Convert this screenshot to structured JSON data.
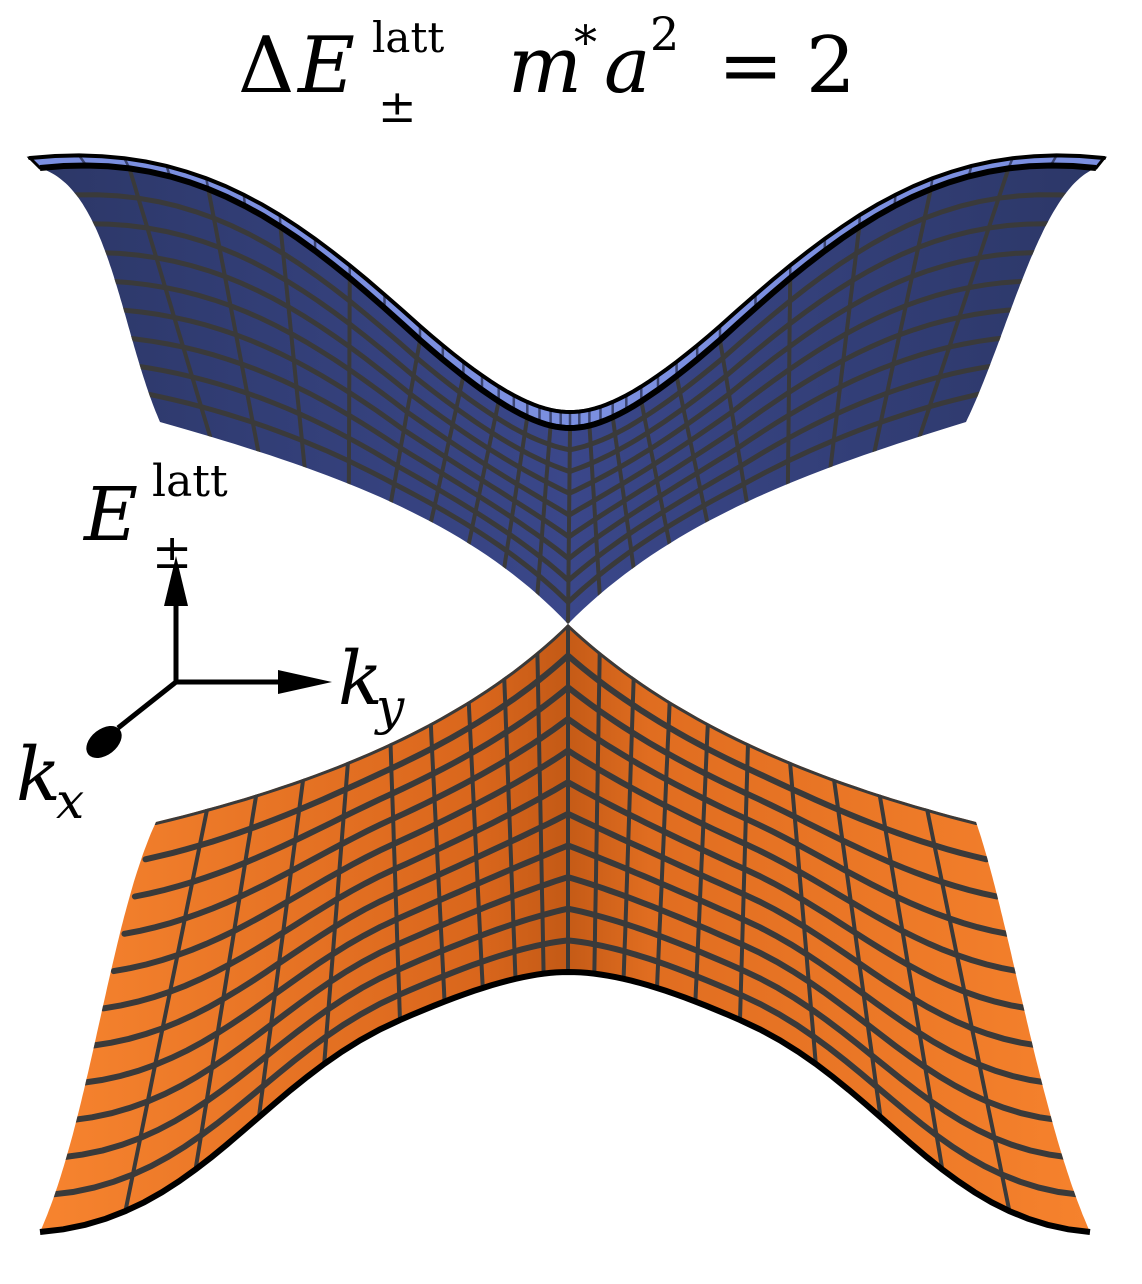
{
  "title": {
    "delta": "Δ",
    "E": "E",
    "sup": "latt",
    "sub": "±",
    "rest": "m",
    "star": "*",
    "a": "a",
    "exp": "2",
    "equals": "=",
    "value": "2"
  },
  "axes": {
    "energy_label": {
      "base": "E",
      "sup": "latt",
      "sub": "±"
    },
    "ky_label": {
      "base": "k",
      "sub": "y"
    },
    "kx_label": {
      "base": "k",
      "sub": "x"
    }
  },
  "bands": {
    "upper": {
      "name": "upper band",
      "color_top": "#7b8fe0",
      "color_body": "#36437a"
    },
    "lower": {
      "name": "lower band",
      "color_body": "#f07a2a",
      "color_shade": "#c95a15"
    }
  },
  "colors": {
    "grid_line": "#3a3a3a",
    "outline": "#000000",
    "axis": "#000000"
  }
}
